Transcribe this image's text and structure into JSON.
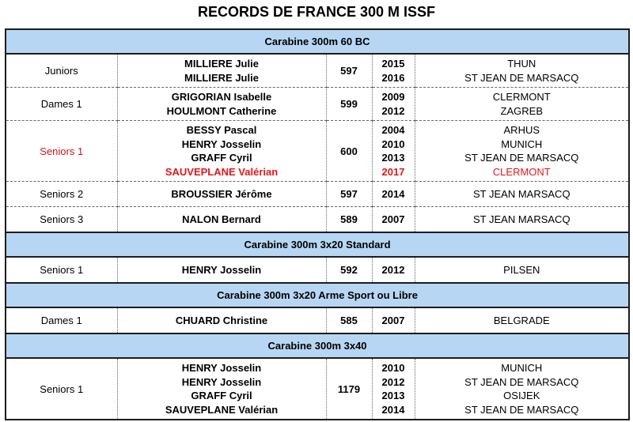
{
  "title": "RECORDS DE FRANCE 300 M ISSF",
  "sections": [
    {
      "header": "Carabine 300m 60 BC",
      "rows": [
        {
          "category": "Juniors",
          "highlight": false,
          "score": "597",
          "entries": [
            {
              "name": "MILLIERE Julie",
              "year": "2015",
              "place": "THUN",
              "highlight": false
            },
            {
              "name": "MILLIERE Julie",
              "year": "2016",
              "place": "ST JEAN DE MARSACQ",
              "highlight": false
            }
          ]
        },
        {
          "category": "Dames 1",
          "highlight": false,
          "score": "599",
          "entries": [
            {
              "name": "GRIGORIAN Isabelle",
              "year": "2009",
              "place": "CLERMONT",
              "highlight": false
            },
            {
              "name": "HOULMONT Catherine",
              "year": "2012",
              "place": "ZAGREB",
              "highlight": false
            }
          ]
        },
        {
          "category": "Seniors 1",
          "highlight": true,
          "score": "600",
          "entries": [
            {
              "name": "BESSY Pascal",
              "year": "2004",
              "place": "ARHUS",
              "highlight": false
            },
            {
              "name": "HENRY Josselin",
              "year": "2010",
              "place": "MUNICH",
              "highlight": false
            },
            {
              "name": "GRAFF Cyril",
              "year": "2013",
              "place": "ST JEAN DE MARSACQ",
              "highlight": false
            },
            {
              "name": "SAUVEPLANE Valérian",
              "year": "2017",
              "place": "CLERMONT",
              "highlight": true
            }
          ]
        },
        {
          "category": "Seniors 2",
          "highlight": false,
          "score": "597",
          "entries": [
            {
              "name": "BROUSSIER Jérôme",
              "year": "2014",
              "place": "ST JEAN MARSACQ",
              "highlight": false
            }
          ]
        },
        {
          "category": "Seniors 3",
          "highlight": false,
          "score": "589",
          "entries": [
            {
              "name": "NALON Bernard",
              "year": "2007",
              "place": "ST JEAN MARSACQ",
              "highlight": false
            }
          ]
        }
      ]
    },
    {
      "header": "Carabine 300m 3x20 Standard",
      "rows": [
        {
          "category": "Seniors 1",
          "highlight": false,
          "score": "592",
          "entries": [
            {
              "name": "HENRY Josselin",
              "year": "2012",
              "place": "PILSEN",
              "highlight": false
            }
          ]
        }
      ]
    },
    {
      "header": "Carabine 300m 3x20 Arme Sport ou Libre",
      "rows": [
        {
          "category": "Dames 1",
          "highlight": false,
          "score": "585",
          "entries": [
            {
              "name": "CHUARD Christine",
              "year": "2007",
              "place": "BELGRADE",
              "highlight": false
            }
          ]
        }
      ]
    },
    {
      "header": "Carabine 300m 3x40",
      "rows": [
        {
          "category": "Seniors 1",
          "highlight": false,
          "score": "1179",
          "entries": [
            {
              "name": "HENRY Josselin",
              "year": "2010",
              "place": "MUNICH",
              "highlight": false
            },
            {
              "name": "HENRY Josselin",
              "year": "2012",
              "place": "ST JEAN DE MARSACQ",
              "highlight": false
            },
            {
              "name": "GRAFF Cyril",
              "year": "2013",
              "place": "OSIJEK",
              "highlight": false
            },
            {
              "name": "SAUVEPLANE Valérian",
              "year": "2014",
              "place": "ST JEAN DE MARSACQ",
              "highlight": false
            }
          ]
        }
      ]
    }
  ]
}
